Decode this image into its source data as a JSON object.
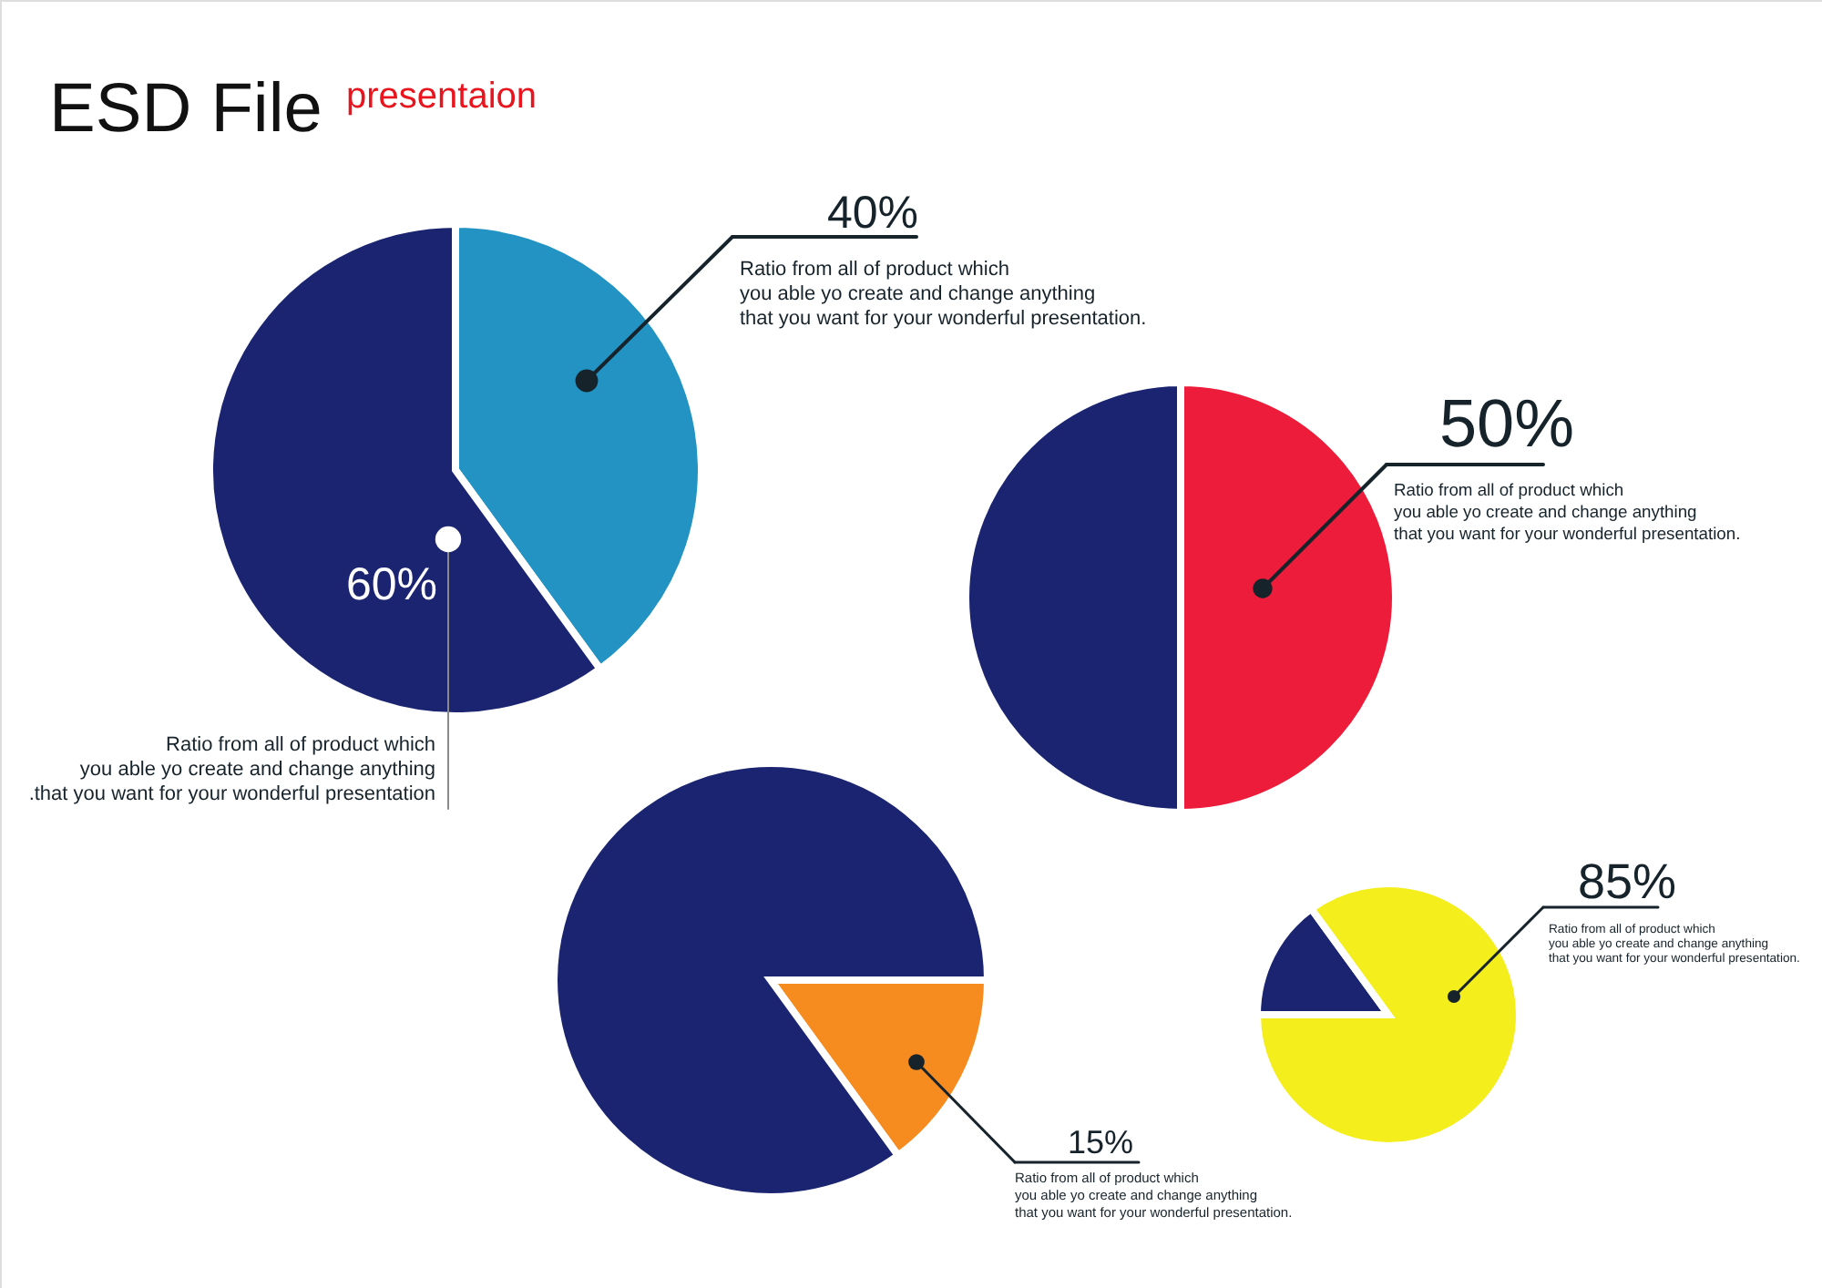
{
  "chart_data": [
    {
      "type": "pie",
      "title": "ESD File",
      "subtitle": "presentaion",
      "categories": [
        null,
        null
      ],
      "values": [
        40,
        60
      ],
      "colors": [
        "#2393c3",
        "#1b2470"
      ],
      "value_labels": [
        "40%",
        "60%"
      ],
      "annotations": [
        "Ratio from all of product which\nyou able yo create and change anything\nthat you want for your wonderful presentation.",
        "Ratio from all of product which\nyou able yo create and change anything\n.that you want for your wonderful presentation"
      ]
    },
    {
      "type": "pie",
      "categories": [
        null,
        null
      ],
      "values": [
        50,
        50
      ],
      "colors": [
        "#ec1c3a",
        "#1b2470"
      ],
      "value_labels": [
        "50%",
        null
      ],
      "annotations": [
        "Ratio from all of product which\nyou able yo create and change anything\nthat you want for your wonderful presentation."
      ]
    },
    {
      "type": "pie",
      "categories": [
        null,
        null
      ],
      "values": [
        15,
        85
      ],
      "colors": [
        "#f68b1f",
        "#1b2470"
      ],
      "value_labels": [
        "15%",
        null
      ],
      "annotations": [
        "Ratio from all of product which\nyou able yo create and change anything\nthat you want for your wonderful presentation."
      ]
    },
    {
      "type": "pie",
      "categories": [
        null,
        null
      ],
      "values": [
        15,
        85
      ],
      "colors": [
        "#1b2470",
        "#f4ee1c"
      ],
      "value_labels": [
        null,
        "85%"
      ],
      "annotations": [
        "Ratio from all of product which\nyou able yo create and change anything\nthat you want for your wonderful presentation."
      ]
    }
  ]
}
